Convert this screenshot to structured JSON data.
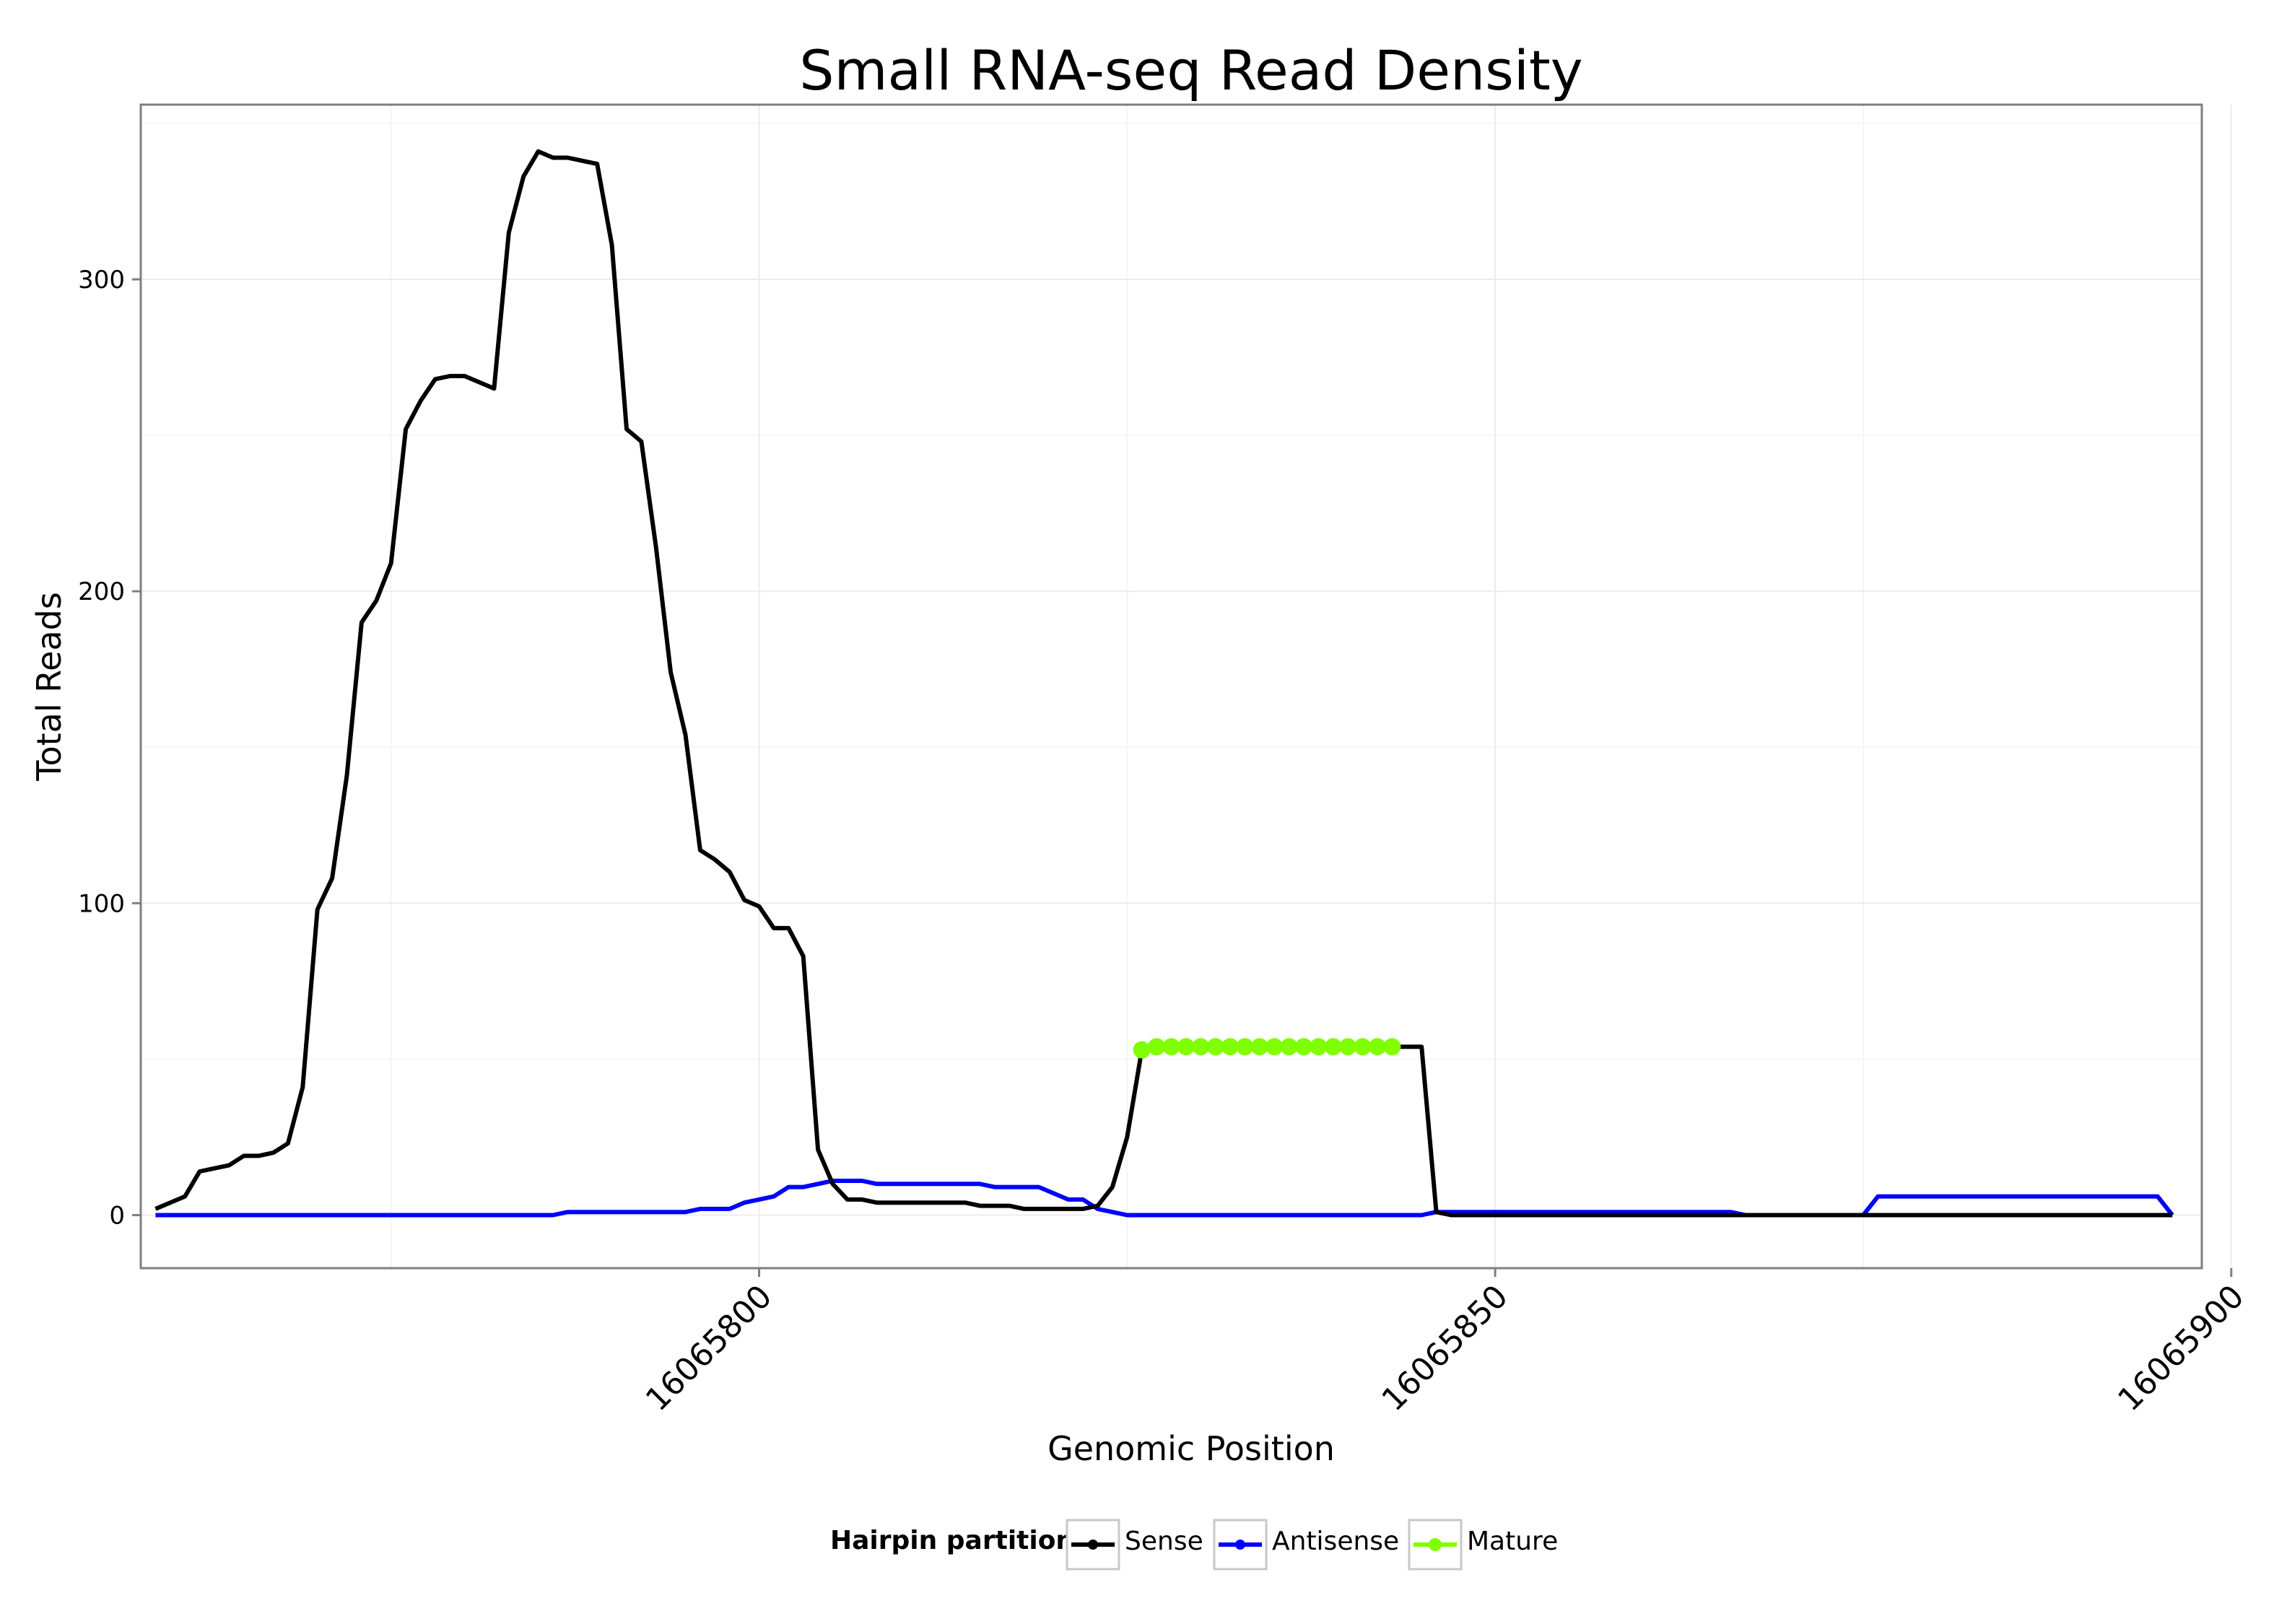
{
  "chart_data": {
    "type": "line",
    "title": "Small RNA-seq Read Density",
    "xlabel": "Genomic Position",
    "ylabel": "Total Reads",
    "xlim": [
      16065758,
      16065898
    ],
    "ylim": [
      -17,
      356
    ],
    "x_ticks": [
      16065800,
      16065850,
      16065900
    ],
    "x_tick_labels": [
      "16065800",
      "16065850",
      "16065900"
    ],
    "y_ticks": [
      0,
      100,
      200,
      300
    ],
    "y_tick_labels": [
      "0",
      "100",
      "200",
      "300"
    ],
    "grid": true,
    "legend": {
      "position": "bottom",
      "title": "Hairpin partition",
      "items": [
        "Sense",
        "Antisense",
        "Mature"
      ]
    },
    "series": [
      {
        "name": "Sense",
        "color": "#000000",
        "x": [
          16065759,
          16065760,
          16065761,
          16065762,
          16065763,
          16065764,
          16065765,
          16065766,
          16065767,
          16065768,
          16065769,
          16065770,
          16065771,
          16065772,
          16065773,
          16065774,
          16065775,
          16065776,
          16065777,
          16065778,
          16065779,
          16065780,
          16065781,
          16065782,
          16065783,
          16065784,
          16065785,
          16065786,
          16065787,
          16065788,
          16065789,
          16065790,
          16065791,
          16065792,
          16065793,
          16065794,
          16065795,
          16065796,
          16065797,
          16065798,
          16065799,
          16065800,
          16065801,
          16065802,
          16065803,
          16065804,
          16065805,
          16065806,
          16065807,
          16065808,
          16065809,
          16065810,
          16065811,
          16065812,
          16065813,
          16065814,
          16065815,
          16065816,
          16065817,
          16065818,
          16065819,
          16065820,
          16065821,
          16065822,
          16065823,
          16065824,
          16065825,
          16065826,
          16065827,
          16065828,
          16065829,
          16065830,
          16065831,
          16065832,
          16065833,
          16065834,
          16065835,
          16065836,
          16065837,
          16065838,
          16065839,
          16065840,
          16065841,
          16065842,
          16065843,
          16065844,
          16065845,
          16065846,
          16065847,
          16065896
        ],
        "values": [
          2,
          4,
          6,
          14,
          15,
          16,
          19,
          19,
          20,
          23,
          41,
          98,
          108,
          141,
          190,
          197,
          209,
          252,
          261,
          268,
          269,
          269,
          267,
          265,
          315,
          333,
          341,
          339,
          339,
          338,
          337,
          311,
          252,
          248,
          214,
          174,
          154,
          117,
          114,
          110,
          101,
          99,
          92,
          92,
          83,
          21,
          10,
          5,
          5,
          4,
          4,
          4,
          4,
          4,
          4,
          4,
          3,
          3,
          3,
          2,
          2,
          2,
          2,
          2,
          3,
          9,
          25,
          53,
          54,
          54,
          54,
          54,
          54,
          54,
          54,
          54,
          54,
          54,
          54,
          54,
          54,
          54,
          54,
          54,
          54,
          54,
          54,
          1,
          0,
          0
        ]
      },
      {
        "name": "Antisense",
        "color": "#0000ff",
        "x": [
          16065759,
          16065786,
          16065787,
          16065795,
          16065796,
          16065798,
          16065799,
          16065800,
          16065801,
          16065802,
          16065803,
          16065804,
          16065805,
          16065806,
          16065807,
          16065808,
          16065809,
          16065815,
          16065816,
          16065819,
          16065820,
          16065821,
          16065822,
          16065823,
          16065824,
          16065825,
          16065826,
          16065843,
          16065844,
          16065845,
          16065846,
          16065866,
          16065867,
          16065875,
          16065876,
          16065895,
          16065896
        ],
        "values": [
          0,
          0,
          1,
          1,
          2,
          2,
          4,
          5,
          6,
          9,
          9,
          10,
          11,
          11,
          11,
          10,
          10,
          10,
          9,
          9,
          7,
          5,
          5,
          2,
          1,
          0,
          0,
          0,
          0,
          0,
          1,
          1,
          0,
          0,
          6,
          6,
          0
        ]
      },
      {
        "name": "Mature",
        "color": "#7fff00",
        "x": [
          16065826,
          16065827,
          16065828,
          16065829,
          16065830,
          16065831,
          16065832,
          16065833,
          16065834,
          16065835,
          16065836,
          16065837,
          16065838,
          16065839,
          16065840,
          16065841,
          16065842,
          16065843
        ],
        "values": [
          53,
          54,
          54,
          54,
          54,
          54,
          54,
          54,
          54,
          54,
          54,
          54,
          54,
          54,
          54,
          54,
          54,
          54
        ]
      }
    ]
  }
}
